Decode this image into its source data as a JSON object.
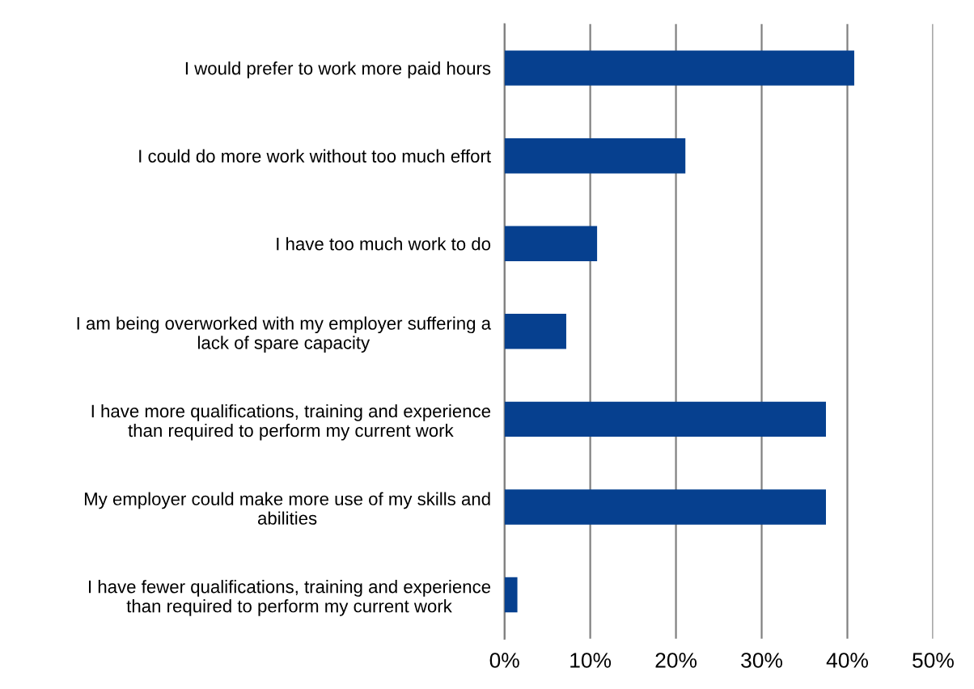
{
  "chart_data": {
    "type": "bar",
    "orientation": "horizontal",
    "categories": [
      "I would prefer to work more paid hours",
      "I could do more work without too much effort",
      "I have too much work to do",
      "I am being overworked with my employer suffering a\nlack of spare capacity",
      "I have more qualifications, training and experience\nthan required to perform my current work",
      "My employer could make more use of my skills and\nabilities",
      "I have fewer qualifications, training and experience\nthan required to perform my current work"
    ],
    "values": [
      40.8,
      21.1,
      10.8,
      7.2,
      37.5,
      37.5,
      1.5
    ],
    "color": "#06408f",
    "xlim": [
      0,
      50
    ],
    "xticks": [
      {
        "value": 0,
        "label": "0%"
      },
      {
        "value": 10,
        "label": "10%"
      },
      {
        "value": 20,
        "label": "20%"
      },
      {
        "value": 30,
        "label": "30%"
      },
      {
        "value": 40,
        "label": "40%"
      },
      {
        "value": 50,
        "label": "50%"
      }
    ],
    "grid": "x",
    "legend": false
  }
}
